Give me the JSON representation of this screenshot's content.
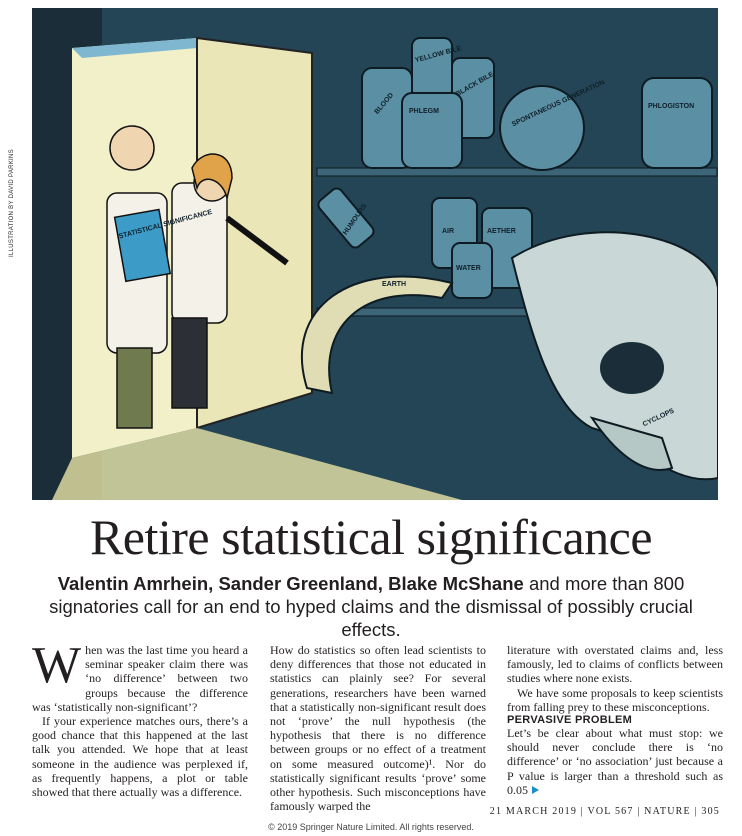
{
  "credit": "ILLUSTRATION BY DAVID PARKINS",
  "illustration": {
    "labels": [
      "BLOOD",
      "YELLOW BILE",
      "BLACK BILE",
      "PHLEGM",
      "SPONTANEOUS GENERATION",
      "PHLOGISTON",
      "HUMOURS",
      "AIR",
      "AETHER",
      "WATER",
      "EARTH",
      "CYCLOPS",
      "STATISTICAL SIGNIFICANCE"
    ]
  },
  "header": {
    "title": "Retire statistical significance",
    "authors": "Valentin Amrhein, Sander Greenland, Blake McShane",
    "standfirst": "and more than 800 signatories call for an end to hyped claims and the dismissal of possibly crucial effects."
  },
  "columns": [
    {
      "paragraphs": [
        "When was the last time you heard a seminar speaker claim there was ‘no difference’ between two groups because the difference was ‘statistically non-significant’?",
        "If your experience matches ours, there’s a good chance that this happened at the last talk you attended. We hope that at least someone in the audience was perplexed if, as frequently happens, a plot or table showed that there actually was a difference."
      ]
    },
    {
      "paragraphs": [
        "How do statistics so often lead scientists to deny differences that those not educated in statistics can plainly see? For several generations, researchers have been warned that a statistically non-significant result does not ‘prove’ the null hypothesis (the hypothesis that there is no difference between groups or no effect of a treatment on some measured outcome)¹. Nor do statistically significant results ‘prove’ some other hypothesis. Such misconceptions have famously warped the"
      ]
    },
    {
      "paragraphs": [
        "literature with overstated claims and, less famously, led to claims of conflicts between studies where none exists.",
        "We have some proposals to keep scientists from falling prey to these misconceptions."
      ],
      "heading": "PERVASIVE PROBLEM",
      "after": [
        "Let’s be clear about what must stop: we should never conclude there is ‘no difference’ or ‘no association’ just because a P value is larger than a threshold such as 0.05"
      ]
    }
  ],
  "footer": {
    "folio": "21 MARCH 2019 | VOL 567 | NATURE | 305",
    "copyright": "© 2019 Springer Nature Limited. All rights reserved."
  }
}
